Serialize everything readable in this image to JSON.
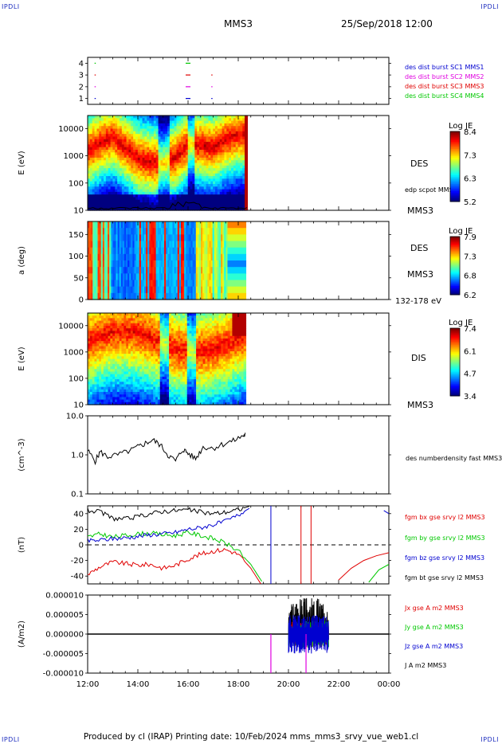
{
  "page": {
    "logo_left": "IPDLI",
    "logo_right": "IPDLI",
    "logo_bottom_left": "IPDLI",
    "logo_bottom_right": "IPDLI",
    "spacecraft": "MMS3",
    "datetime": "25/Sep/2018 12:00",
    "footer": "Produced by cl (IRAP)    Printing date: 10/Feb/2024    mms_mms3_srvy_vue_web1.cl"
  },
  "colors": {
    "black": "#000000",
    "red": "#e00000",
    "green": "#00c800",
    "blue": "#0000d0",
    "magenta": "#e000e0"
  },
  "chart_data": [
    {
      "type": "scatter",
      "id": "burst",
      "ylim": [
        0.5,
        4.5
      ],
      "yticks": [
        "1",
        "2",
        "3",
        "4"
      ],
      "series": [
        {
          "name": "des dist burst SC1 MMS1",
          "color": "#0000d0",
          "y": 1,
          "x": [
            12.3,
            16.0,
            16.95
          ]
        },
        {
          "name": "des dist burst SC2 MMS2",
          "color": "#e000e0",
          "y": 2,
          "x": [
            12.3,
            16.0,
            16.95
          ]
        },
        {
          "name": "des dist burst SC3 MMS3",
          "color": "#e00000",
          "y": 3,
          "x": [
            12.3,
            16.0,
            16.95
          ]
        },
        {
          "name": "des dist burst SC4 MMS4",
          "color": "#00c800",
          "y": 4,
          "x": [
            12.3,
            16.0
          ]
        }
      ]
    },
    {
      "type": "heatmap",
      "id": "des_energy",
      "ylabel": "E (eV)",
      "ylim": [
        10,
        30000
      ],
      "yscale": "log",
      "yticks": [
        "10",
        "100",
        "1000",
        "10000"
      ],
      "label": "DES",
      "sc_label": "MMS3",
      "overlay_label": "edp scpot MMS3",
      "colorbar": {
        "title": "Log JE",
        "ticks": [
          "8.4",
          "7.3",
          "6.3",
          "5.2"
        ]
      },
      "peak_energy_eV": [
        [
          12.0,
          1500
        ],
        [
          12.5,
          3000
        ],
        [
          13.0,
          5000
        ],
        [
          13.5,
          2000
        ],
        [
          14.0,
          800
        ],
        [
          14.5,
          600
        ],
        [
          15.0,
          500
        ],
        [
          15.5,
          900
        ],
        [
          16.0,
          2500
        ],
        [
          16.5,
          2500
        ],
        [
          17.0,
          2000
        ],
        [
          17.5,
          4000
        ],
        [
          18.0,
          6000
        ],
        [
          18.3,
          6000
        ]
      ]
    },
    {
      "type": "heatmap",
      "id": "des_pitch",
      "ylabel": "a (deg)",
      "ylim": [
        0,
        180
      ],
      "yticks": [
        "0",
        "50",
        "100",
        "150"
      ],
      "label": "DES",
      "sc_label": "MMS3",
      "energy_band": "132-178 eV",
      "colorbar": {
        "title": "Log JE",
        "ticks": [
          "7.9",
          "7.3",
          "6.8",
          "6.2"
        ]
      }
    },
    {
      "type": "heatmap",
      "id": "dis_energy",
      "ylabel": "E (eV)",
      "ylim": [
        10,
        30000
      ],
      "yscale": "log",
      "yticks": [
        "10",
        "100",
        "1000",
        "10000"
      ],
      "label": "DIS",
      "sc_label": "MMS3",
      "colorbar": {
        "title": "Log JE",
        "ticks": [
          "7.4",
          "6.1",
          "4.7",
          "3.4"
        ]
      }
    },
    {
      "type": "line",
      "id": "density",
      "ylabel": "(cm^-3)",
      "ylim": [
        0.1,
        10
      ],
      "yscale": "log",
      "yticks": [
        "10.0",
        "1.0",
        "0.1"
      ],
      "series": [
        {
          "name": "des numberdensity fast MMS3",
          "color": "#000000",
          "x": [
            12.0,
            12.3,
            12.5,
            12.8,
            13.2,
            13.7,
            14.0,
            14.3,
            14.6,
            14.9,
            15.2,
            15.5,
            15.8,
            16.0,
            16.3,
            16.6,
            17.0,
            17.4,
            17.8,
            18.2,
            18.3
          ],
          "y": [
            1.3,
            0.7,
            1.2,
            0.9,
            1.0,
            1.3,
            1.6,
            2.0,
            2.4,
            1.8,
            1.0,
            0.7,
            1.4,
            1.1,
            0.8,
            1.6,
            1.5,
            1.9,
            2.3,
            3.1,
            3.3
          ]
        }
      ]
    },
    {
      "type": "line",
      "id": "bfield",
      "ylabel": "(nT)",
      "ylim": [
        -50,
        50
      ],
      "yticks": [
        "40",
        "20",
        "0",
        "-20",
        "-40"
      ],
      "series": [
        {
          "name": "fgm bx gse srvy l2 MMS3",
          "color": "#e00000",
          "x": [
            12.0,
            12.5,
            13.0,
            13.5,
            14.0,
            14.5,
            15.0,
            15.5,
            16.0,
            16.5,
            17.0,
            17.5,
            18.0,
            18.5,
            19.0
          ],
          "y": [
            -38,
            -28,
            -22,
            -24,
            -26,
            -25,
            -30,
            -26,
            -18,
            -12,
            -8,
            -6,
            -12,
            -30,
            -55
          ]
        },
        {
          "name": "fgm by gse srvy l2 MMS3",
          "color": "#00c800",
          "x": [
            12.0,
            12.5,
            13.0,
            13.5,
            14.0,
            14.5,
            15.0,
            15.5,
            16.0,
            16.5,
            17.0,
            17.5,
            18.0,
            18.5,
            19.0
          ],
          "y": [
            10,
            14,
            10,
            12,
            14,
            15,
            13,
            12,
            16,
            12,
            8,
            2,
            -8,
            -25,
            -50
          ]
        },
        {
          "name": "fgm bz gse srvy l2 MMS3",
          "color": "#0000d0",
          "x": [
            12.0,
            12.5,
            13.0,
            13.5,
            14.0,
            14.5,
            15.0,
            15.5,
            16.0,
            16.5,
            17.0,
            17.5,
            18.0,
            18.5
          ],
          "y": [
            5,
            6,
            8,
            9,
            11,
            13,
            14,
            16,
            20,
            22,
            26,
            30,
            38,
            48
          ]
        },
        {
          "name": "fgm bt gse srvy l2 MMS3",
          "color": "#000000",
          "x": [
            12.0,
            12.5,
            13.0,
            13.5,
            14.0,
            14.5,
            15.0,
            15.5,
            16.0,
            16.5,
            17.0,
            17.5,
            18.0,
            18.5
          ],
          "y": [
            44,
            42,
            34,
            33,
            36,
            40,
            43,
            44,
            45,
            42,
            40,
            42,
            45,
            50
          ]
        }
      ],
      "late_spikes_x": [
        19.3,
        20.5,
        20.9
      ],
      "late_segments": [
        {
          "color": "#e00000",
          "x": [
            22.0,
            22.5,
            23.0,
            23.5,
            24.0
          ],
          "y": [
            -45,
            -30,
            -20,
            -14,
            -10
          ]
        },
        {
          "color": "#00c800",
          "x": [
            23.2,
            23.6,
            24.0
          ],
          "y": [
            -48,
            -32,
            -25
          ]
        },
        {
          "color": "#0000d0",
          "x": [
            23.8,
            24.0
          ],
          "y": [
            44,
            40
          ]
        }
      ]
    },
    {
      "type": "line",
      "id": "current",
      "ylabel": "(A/m2)",
      "ylim": [
        -1e-05,
        1e-05
      ],
      "yticks": [
        "0.000010",
        "0.000005",
        "0.000000",
        "-0.000005",
        "-0.000010"
      ],
      "xlim_hours": [
        12,
        24
      ],
      "xticks": [
        "12:00",
        "14:00",
        "16:00",
        "18:00",
        "20:00",
        "22:00",
        "00:00"
      ],
      "series": [
        {
          "name": "Jx gse A m2 MMS3",
          "color": "#e00000"
        },
        {
          "name": "Jy gse A m2 MMS3",
          "color": "#00c800"
        },
        {
          "name": "Jz gse A m2 MMS3",
          "color": "#0000d0"
        },
        {
          "name": "J A m2 MMS3",
          "color": "#000000"
        }
      ],
      "burst_interval_hours": [
        20.0,
        21.6
      ]
    }
  ]
}
